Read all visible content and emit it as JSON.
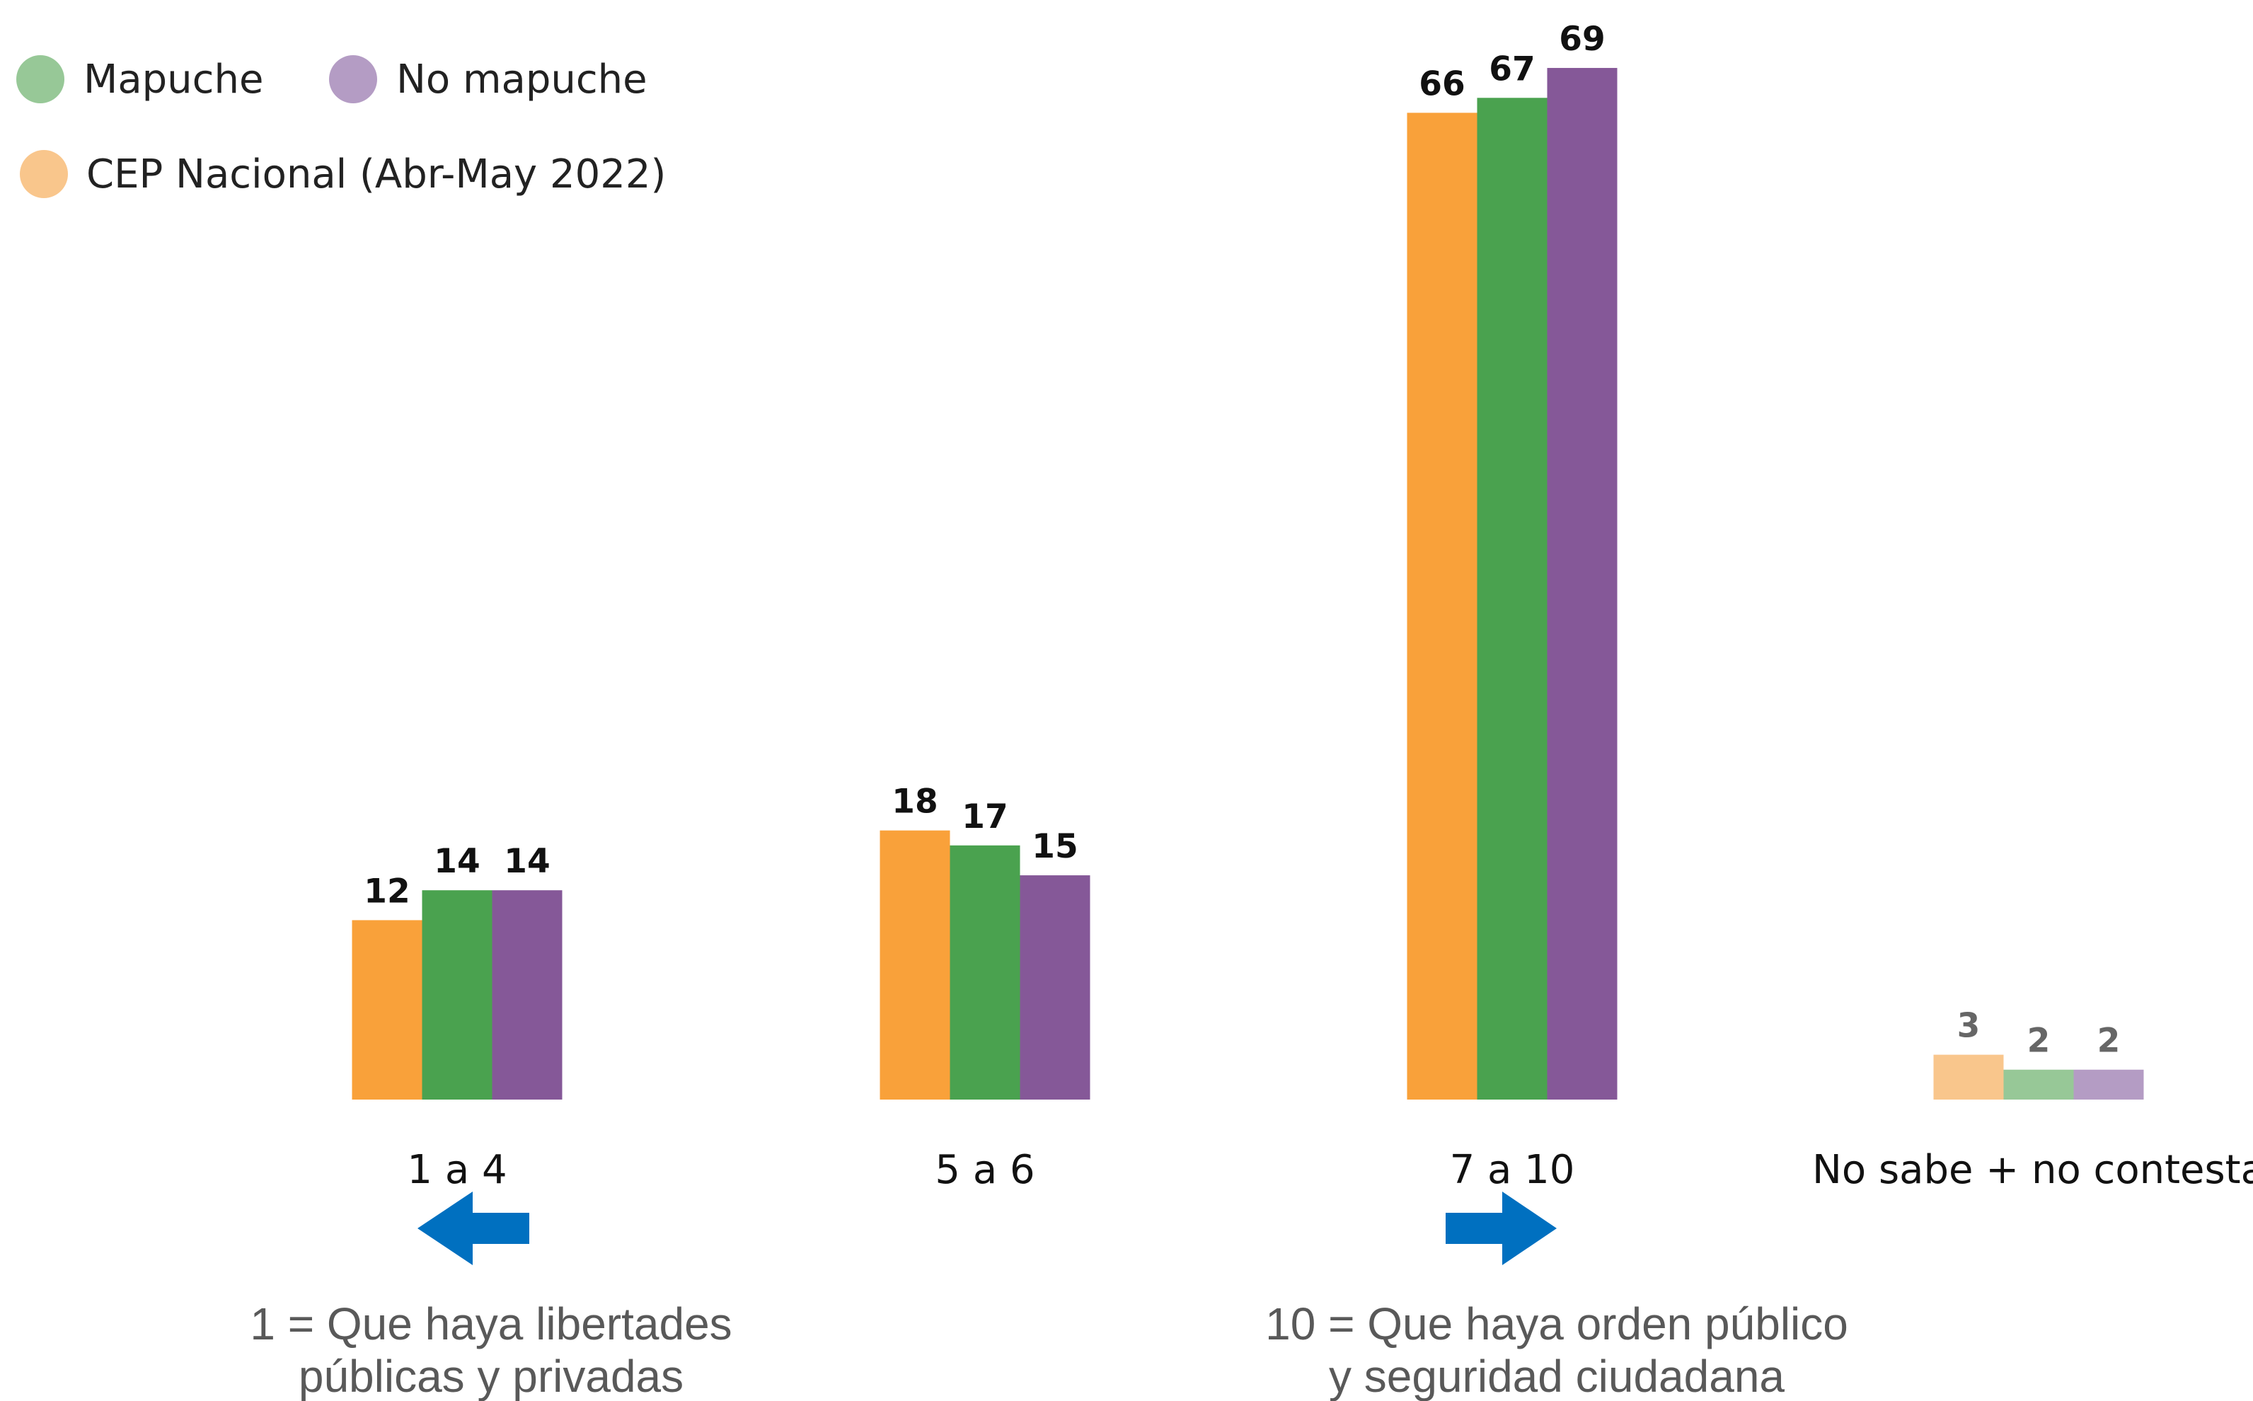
{
  "chart_data": {
    "type": "bar",
    "categories": [
      "1 a 4",
      "5 a 6",
      "7 a 10",
      "No sabe + no contesta"
    ],
    "series": [
      {
        "name": "CEP Nacional (Abr-May 2022)",
        "color": "#f9a13a",
        "muted_color": "#f9c68c",
        "values": [
          12,
          18,
          66,
          3
        ]
      },
      {
        "name": "Mapuche",
        "color": "#4aa24f",
        "muted_color": "#97c897",
        "values": [
          14,
          17,
          67,
          2
        ]
      },
      {
        "name": "No mapuche",
        "color": "#855898",
        "muted_color": "#b49cc4",
        "values": [
          14,
          15,
          69,
          2
        ]
      }
    ],
    "muted_categories": [
      "No sabe + no contesta"
    ],
    "legend_order": [
      "Mapuche",
      "No mapuche",
      "CEP Nacional (Abr-May 2022)"
    ],
    "value_label_color": "#111111",
    "muted_value_label_color": "#666666",
    "ylim": [
      0,
      70
    ],
    "grid": false,
    "legend_position": "top-left",
    "annotations": {
      "left": {
        "lines": [
          "1 = Que haya libertades",
          "públicas y privadas"
        ],
        "arrow": "left",
        "arrow_color": "#0070c0",
        "icon": "arrow-left-icon"
      },
      "right": {
        "lines": [
          "10 = Que haya orden público",
          "y seguridad ciudadana"
        ],
        "arrow": "right",
        "arrow_color": "#0070c0",
        "icon": "arrow-right-icon"
      }
    }
  }
}
